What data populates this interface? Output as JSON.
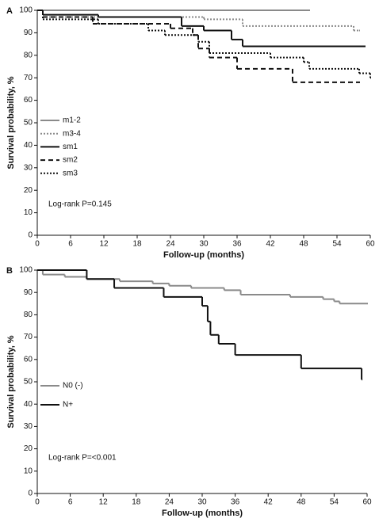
{
  "chart_data": [
    {
      "type": "step",
      "panel": "A",
      "xlabel": "Follow-up (months)",
      "ylabel": "Survival probability, %",
      "annotation": "Log-rank P=0.145",
      "legend": "center left",
      "xlim": [
        0,
        60
      ],
      "xticks": [
        0,
        6,
        12,
        18,
        24,
        30,
        36,
        42,
        48,
        54,
        60
      ],
      "ylim": [
        0,
        100
      ],
      "yticks": [
        0,
        10,
        20,
        30,
        40,
        50,
        60,
        70,
        80,
        90,
        100
      ],
      "series": [
        {
          "name": "m1-2",
          "color": "#8a8a8a",
          "dash": "solid",
          "x": [
            0,
            49
          ],
          "values": [
            100,
            100
          ]
        },
        {
          "name": "m3-4",
          "color": "#8a8a8a",
          "dash": "dotted",
          "x": [
            0,
            1,
            30,
            37,
            57,
            58
          ],
          "values": [
            100,
            97,
            96,
            93,
            91,
            91
          ]
        },
        {
          "name": "sm1",
          "color": "#111111",
          "dash": "solid",
          "x": [
            0,
            1,
            11,
            26,
            30,
            35,
            37,
            59
          ],
          "values": [
            100,
            98,
            97,
            93,
            91,
            87,
            84,
            84
          ]
        },
        {
          "name": "sm2",
          "color": "#111111",
          "dash": "dashed",
          "x": [
            0,
            1,
            10,
            24,
            28,
            29,
            31,
            36,
            46,
            58
          ],
          "values": [
            100,
            97,
            94,
            92,
            89,
            83,
            79,
            74,
            68,
            68
          ]
        },
        {
          "name": "sm3",
          "color": "#111111",
          "dash": "dotted",
          "x": [
            0,
            1,
            11,
            20,
            23,
            29,
            31,
            42,
            48,
            49,
            58,
            60
          ],
          "values": [
            100,
            96,
            94,
            91,
            89,
            86,
            81,
            79,
            77,
            74,
            72,
            70
          ]
        }
      ]
    },
    {
      "type": "step",
      "panel": "B",
      "xlabel": "Follow-up (months)",
      "ylabel": "Survival probability, %",
      "annotation": "Log-rank P=<0.001",
      "legend": "center left",
      "xlim": [
        0,
        60
      ],
      "xticks": [
        0,
        6,
        12,
        18,
        24,
        30,
        36,
        42,
        48,
        54,
        60
      ],
      "ylim": [
        0,
        100
      ],
      "yticks": [
        0,
        10,
        20,
        30,
        40,
        50,
        60,
        70,
        80,
        90,
        100
      ],
      "series": [
        {
          "name": "N0 (-)",
          "color": "#8a8a8a",
          "dash": "solid",
          "x": [
            0,
            1,
            5,
            9,
            15,
            21,
            24,
            28,
            34,
            37,
            46,
            52,
            54,
            55,
            60
          ],
          "values": [
            100,
            98,
            97,
            96,
            95,
            94,
            93,
            92,
            91,
            89,
            88,
            87,
            86,
            85,
            85
          ]
        },
        {
          "name": "N+",
          "color": "#111111",
          "dash": "solid",
          "x": [
            0,
            9,
            14,
            23,
            30,
            31,
            31.5,
            33,
            36,
            48,
            59
          ],
          "values": [
            100,
            96,
            92,
            88,
            84,
            77,
            71,
            67,
            62,
            56,
            51
          ]
        }
      ]
    }
  ]
}
